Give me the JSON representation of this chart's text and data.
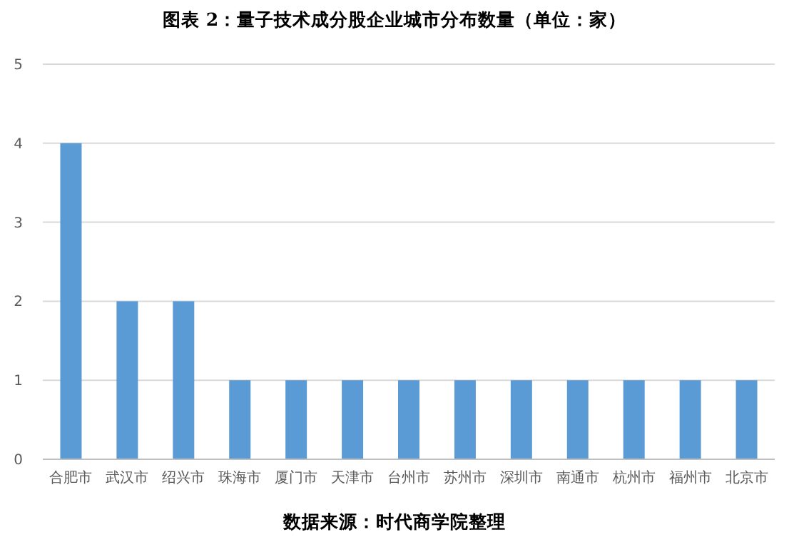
{
  "chart_data": {
    "type": "bar",
    "title": "图表 2：量子技术成分股企业城市分布数量（单位：家）",
    "categories": [
      "合肥市",
      "武汉市",
      "绍兴市",
      "珠海市",
      "厦门市",
      "天津市",
      "台州市",
      "苏州市",
      "深圳市",
      "南通市",
      "杭州市",
      "福州市",
      "北京市"
    ],
    "values": [
      4,
      2,
      2,
      1,
      1,
      1,
      1,
      1,
      1,
      1,
      1,
      1,
      1
    ],
    "color": "#5b9bd5",
    "ylim": [
      0,
      5
    ],
    "yticks": [
      0,
      1,
      2,
      3,
      4,
      5
    ],
    "grid": "y",
    "annotations": [
      "数据来源：时代商学院整理"
    ]
  }
}
